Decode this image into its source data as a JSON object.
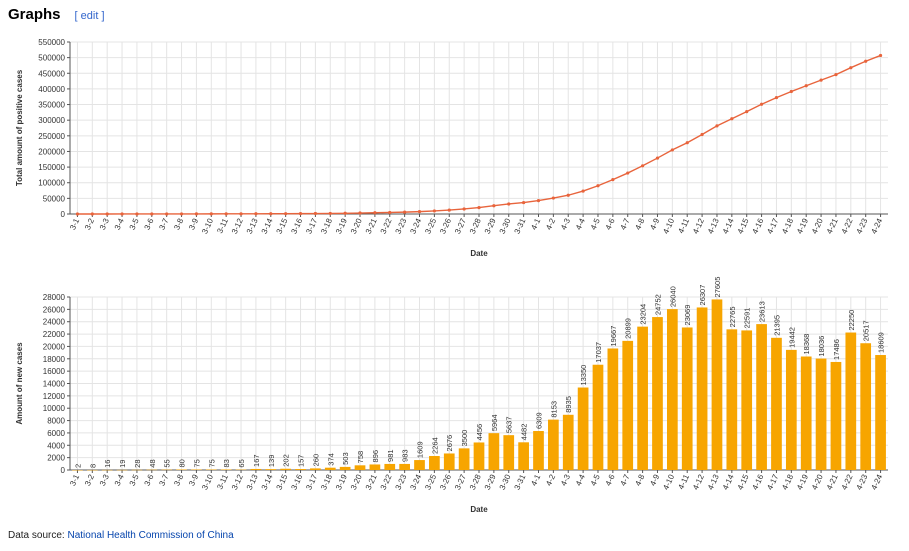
{
  "heading": {
    "title": "Graphs",
    "edit_open": "[",
    "edit_label": "edit",
    "edit_close": "]"
  },
  "source": {
    "label": "Data source:",
    "link_text": "National Health Commission of China"
  },
  "colors": {
    "line": "#e8643c",
    "bar": "#f7a500",
    "grid": "#e4e4e4",
    "axis": "#555555"
  },
  "chart_data": [
    {
      "type": "line",
      "title": "",
      "xlabel": "Date",
      "ylabel": "Total amount of positive cases",
      "ylim": [
        0,
        550000
      ],
      "yticks": [
        0,
        50000,
        100000,
        150000,
        200000,
        250000,
        300000,
        350000,
        400000,
        450000,
        500000,
        550000
      ],
      "grid": true,
      "x": [
        "3-1",
        "3-2",
        "3-3",
        "3-4",
        "3-5",
        "3-6",
        "3-7",
        "3-8",
        "3-9",
        "3-10",
        "3-11",
        "3-12",
        "3-13",
        "3-14",
        "3-15",
        "3-16",
        "3-17",
        "3-18",
        "3-19",
        "3-20",
        "3-21",
        "3-22",
        "3-23",
        "3-24",
        "3-25",
        "3-26",
        "3-27",
        "3-28",
        "3-29",
        "3-30",
        "3-31",
        "4-1",
        "4-2",
        "4-3",
        "4-4",
        "4-5",
        "4-6",
        "4-7",
        "4-8",
        "4-9",
        "4-10",
        "4-11",
        "4-12",
        "4-13",
        "4-14",
        "4-15",
        "4-16",
        "4-17",
        "4-18",
        "4-19",
        "4-20",
        "4-21",
        "4-22",
        "4-23",
        "4-24"
      ],
      "y": [
        2,
        10,
        26,
        45,
        73,
        121,
        176,
        256,
        331,
        406,
        489,
        554,
        721,
        860,
        1062,
        1219,
        1479,
        1853,
        2356,
        3114,
        4010,
        4991,
        5974,
        7583,
        9847,
        12523,
        16023,
        20479,
        26443,
        32080,
        36562,
        42871,
        51024,
        59959,
        73309,
        90346,
        110013,
        130912,
        154116,
        178868,
        204908,
        227977,
        254284,
        281889,
        304654,
        327245,
        350858,
        372253,
        391695,
        410063,
        428099,
        445585,
        467835,
        488352,
        506961
      ]
    },
    {
      "type": "bar",
      "title": "",
      "xlabel": "Date",
      "ylabel": "Amount of new cases",
      "ylim": [
        0,
        28000
      ],
      "yticks": [
        0,
        2000,
        4000,
        6000,
        8000,
        10000,
        12000,
        14000,
        16000,
        18000,
        20000,
        22000,
        24000,
        26000,
        28000
      ],
      "grid": true,
      "categories": [
        "3-1",
        "3-2",
        "3-3",
        "3-4",
        "3-5",
        "3-6",
        "3-7",
        "3-8",
        "3-9",
        "3-10",
        "3-11",
        "3-12",
        "3-13",
        "3-14",
        "3-15",
        "3-16",
        "3-17",
        "3-18",
        "3-19",
        "3-20",
        "3-21",
        "3-22",
        "3-23",
        "3-24",
        "3-25",
        "3-26",
        "3-27",
        "3-28",
        "3-29",
        "3-30",
        "3-31",
        "4-1",
        "4-2",
        "4-3",
        "4-4",
        "4-5",
        "4-6",
        "4-7",
        "4-8",
        "4-9",
        "4-10",
        "4-11",
        "4-12",
        "4-13",
        "4-14",
        "4-15",
        "4-16",
        "4-17",
        "4-18",
        "4-19",
        "4-20",
        "4-21",
        "4-22",
        "4-23",
        "4-24"
      ],
      "values": [
        2,
        8,
        16,
        19,
        28,
        48,
        55,
        80,
        75,
        75,
        83,
        65,
        167,
        139,
        202,
        157,
        260,
        374,
        503,
        758,
        896,
        981,
        983,
        1609,
        2264,
        2676,
        3500,
        4456,
        5964,
        5637,
        4482,
        6309,
        8153,
        8935,
        13350,
        17037,
        19667,
        20899,
        23204,
        24752,
        26040,
        23069,
        26307,
        27605,
        22765,
        22591,
        23613,
        21395,
        19442,
        18368,
        18036,
        17486,
        22250,
        20517,
        18609
      ]
    }
  ]
}
